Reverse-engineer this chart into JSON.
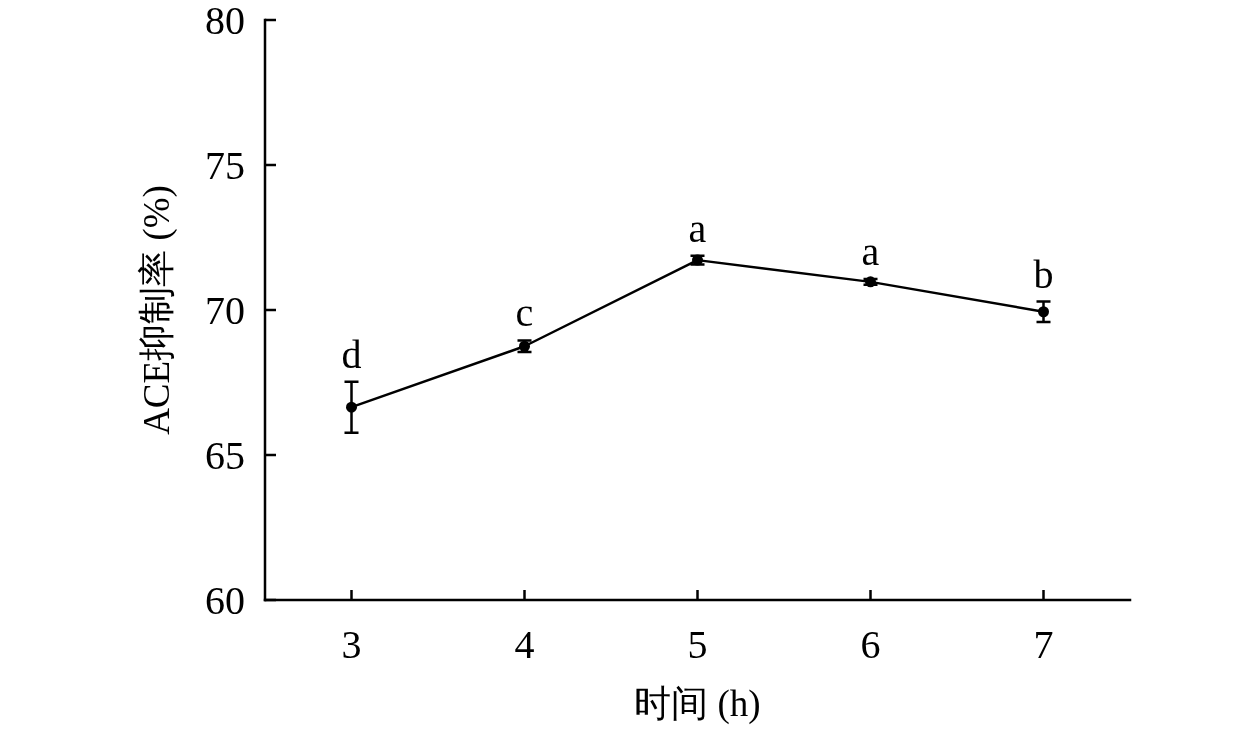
{
  "chart_data": {
    "type": "line",
    "xlabel": "时间 (h)",
    "ylabel": "ACE抑制率 (%)",
    "x": [
      3,
      4,
      5,
      6,
      7
    ],
    "series": [
      {
        "color": "#000000",
        "values": [
          66.65,
          68.75,
          71.72,
          70.97,
          69.94
        ],
        "errors": [
          0.88,
          0.2,
          0.15,
          0.1,
          0.35
        ]
      }
    ],
    "xlim": [
      2.5,
      7.5
    ],
    "xticks": [
      3,
      4,
      5,
      6,
      7
    ],
    "ylim": [
      60,
      80
    ],
    "yticks": [
      60,
      65,
      70,
      75,
      80
    ],
    "marker": "circle",
    "line_style": "solid",
    "annotations": [
      {
        "text": "d",
        "x": 3,
        "y": 66.65
      },
      {
        "text": "c",
        "x": 4,
        "y": 68.75
      },
      {
        "text": "a",
        "x": 5,
        "y": 71.72
      },
      {
        "text": "a",
        "x": 6,
        "y": 70.97
      },
      {
        "text": "b",
        "x": 7,
        "y": 69.94
      }
    ]
  }
}
